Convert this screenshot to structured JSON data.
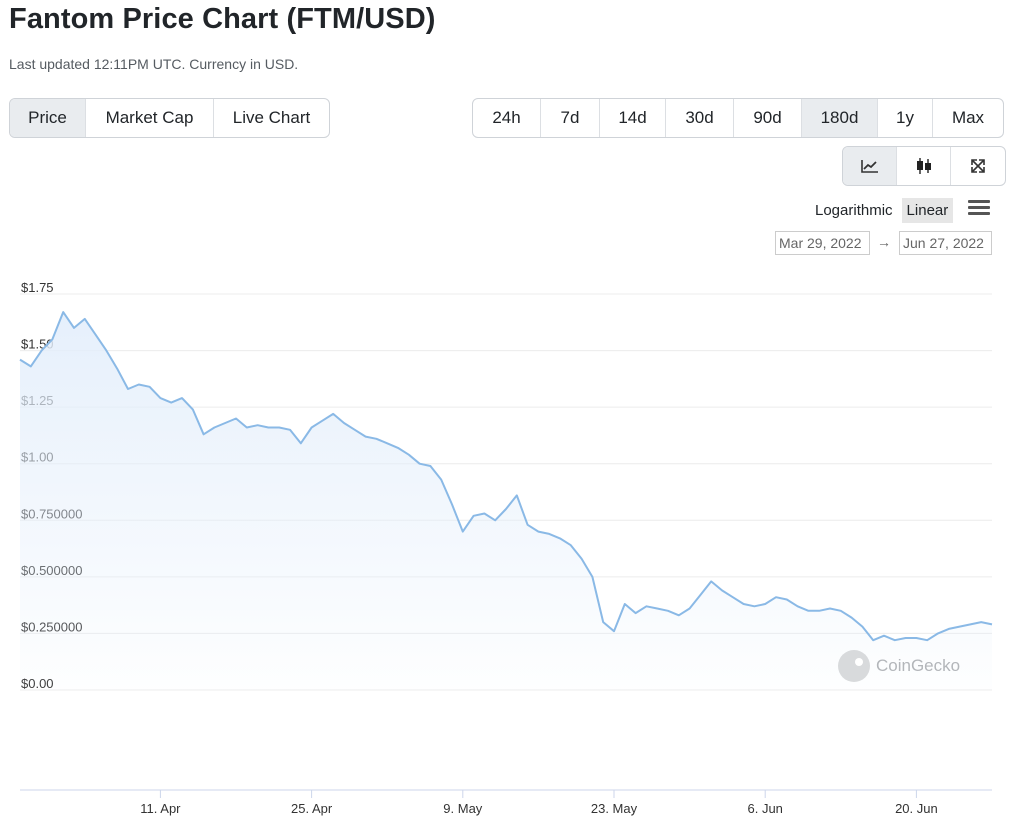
{
  "header": {
    "title": "Fantom Price Chart (FTM/USD)",
    "subtitle": "Last updated 12:11PM UTC. Currency in USD."
  },
  "view_tabs": [
    {
      "label": "Price",
      "active": true
    },
    {
      "label": "Market Cap",
      "active": false
    },
    {
      "label": "Live Chart",
      "active": false
    }
  ],
  "range_tabs": [
    {
      "label": "24h",
      "active": false
    },
    {
      "label": "7d",
      "active": false
    },
    {
      "label": "14d",
      "active": false
    },
    {
      "label": "30d",
      "active": false
    },
    {
      "label": "90d",
      "active": false
    },
    {
      "label": "180d",
      "active": true
    },
    {
      "label": "1y",
      "active": false
    },
    {
      "label": "Max",
      "active": false
    }
  ],
  "chart_type_buttons": [
    {
      "icon": "line-chart-icon",
      "active": true
    },
    {
      "icon": "candlestick-icon",
      "active": false
    },
    {
      "icon": "expand-icon",
      "active": false
    }
  ],
  "scale": {
    "log_label": "Logarithmic",
    "linear_label": "Linear",
    "active": "Linear"
  },
  "date_range": {
    "from": "Mar 29, 2022",
    "arrow": "→",
    "to": "Jun 27, 2022"
  },
  "watermark": "CoinGecko",
  "colors": {
    "line": "#8ab9e6",
    "fill_top": "#e3eefb",
    "grid": "#ececec",
    "active_button": "#e9ecef"
  },
  "chart_data": {
    "type": "area",
    "x_start": "2022-03-29",
    "x_end": "2022-06-27",
    "ylim": [
      0,
      1.75
    ],
    "yticks": [
      {
        "value": 1.75,
        "label": "$1.75"
      },
      {
        "value": 1.5,
        "label": "$1.50"
      },
      {
        "value": 1.25,
        "label": "$1.25"
      },
      {
        "value": 1.0,
        "label": "$1.00"
      },
      {
        "value": 0.75,
        "label": "$0.750000"
      },
      {
        "value": 0.5,
        "label": "$0.500000"
      },
      {
        "value": 0.25,
        "label": "$0.250000"
      },
      {
        "value": 0.0,
        "label": "$0.00"
      }
    ],
    "xticks": [
      {
        "date": "2022-04-11",
        "label": "11. Apr"
      },
      {
        "date": "2022-04-25",
        "label": "25. Apr"
      },
      {
        "date": "2022-05-09",
        "label": "9. May"
      },
      {
        "date": "2022-05-23",
        "label": "23. May"
      },
      {
        "date": "2022-06-06",
        "label": "6. Jun"
      },
      {
        "date": "2022-06-20",
        "label": "20. Jun"
      }
    ],
    "grid": true,
    "legend": "none",
    "series": [
      {
        "points": [
          [
            "2022-03-29",
            1.46
          ],
          [
            "2022-03-30",
            1.43
          ],
          [
            "2022-03-31",
            1.5
          ],
          [
            "2022-04-01",
            1.55
          ],
          [
            "2022-04-02",
            1.67
          ],
          [
            "2022-04-03",
            1.6
          ],
          [
            "2022-04-04",
            1.64
          ],
          [
            "2022-04-05",
            1.57
          ],
          [
            "2022-04-06",
            1.5
          ],
          [
            "2022-04-07",
            1.42
          ],
          [
            "2022-04-08",
            1.33
          ],
          [
            "2022-04-09",
            1.35
          ],
          [
            "2022-04-10",
            1.34
          ],
          [
            "2022-04-11",
            1.29
          ],
          [
            "2022-04-12",
            1.27
          ],
          [
            "2022-04-13",
            1.29
          ],
          [
            "2022-04-14",
            1.24
          ],
          [
            "2022-04-15",
            1.13
          ],
          [
            "2022-04-16",
            1.16
          ],
          [
            "2022-04-17",
            1.18
          ],
          [
            "2022-04-18",
            1.2
          ],
          [
            "2022-04-19",
            1.16
          ],
          [
            "2022-04-20",
            1.17
          ],
          [
            "2022-04-21",
            1.16
          ],
          [
            "2022-04-22",
            1.16
          ],
          [
            "2022-04-23",
            1.15
          ],
          [
            "2022-04-24",
            1.09
          ],
          [
            "2022-04-25",
            1.16
          ],
          [
            "2022-04-26",
            1.19
          ],
          [
            "2022-04-27",
            1.22
          ],
          [
            "2022-04-28",
            1.18
          ],
          [
            "2022-04-29",
            1.15
          ],
          [
            "2022-04-30",
            1.12
          ],
          [
            "2022-05-01",
            1.11
          ],
          [
            "2022-05-02",
            1.09
          ],
          [
            "2022-05-03",
            1.07
          ],
          [
            "2022-05-04",
            1.04
          ],
          [
            "2022-05-05",
            1.0
          ],
          [
            "2022-05-06",
            0.99
          ],
          [
            "2022-05-07",
            0.93
          ],
          [
            "2022-05-08",
            0.82
          ],
          [
            "2022-05-09",
            0.7
          ],
          [
            "2022-05-10",
            0.77
          ],
          [
            "2022-05-11",
            0.78
          ],
          [
            "2022-05-12",
            0.75
          ],
          [
            "2022-05-13",
            0.8
          ],
          [
            "2022-05-14",
            0.86
          ],
          [
            "2022-05-15",
            0.73
          ],
          [
            "2022-05-16",
            0.7
          ],
          [
            "2022-05-17",
            0.69
          ],
          [
            "2022-05-18",
            0.67
          ],
          [
            "2022-05-19",
            0.64
          ],
          [
            "2022-05-20",
            0.58
          ],
          [
            "2022-05-21",
            0.5
          ],
          [
            "2022-05-22",
            0.3
          ],
          [
            "2022-05-23",
            0.26
          ],
          [
            "2022-05-24",
            0.38
          ],
          [
            "2022-05-25",
            0.34
          ],
          [
            "2022-05-26",
            0.37
          ],
          [
            "2022-05-27",
            0.36
          ],
          [
            "2022-05-28",
            0.35
          ],
          [
            "2022-05-29",
            0.33
          ],
          [
            "2022-05-30",
            0.36
          ],
          [
            "2022-05-31",
            0.42
          ],
          [
            "2022-06-01",
            0.48
          ],
          [
            "2022-06-02",
            0.44
          ],
          [
            "2022-06-03",
            0.41
          ],
          [
            "2022-06-04",
            0.38
          ],
          [
            "2022-06-05",
            0.37
          ],
          [
            "2022-06-06",
            0.38
          ],
          [
            "2022-06-07",
            0.41
          ],
          [
            "2022-06-08",
            0.4
          ],
          [
            "2022-06-09",
            0.37
          ],
          [
            "2022-06-10",
            0.35
          ],
          [
            "2022-06-11",
            0.35
          ],
          [
            "2022-06-12",
            0.36
          ],
          [
            "2022-06-13",
            0.35
          ],
          [
            "2022-06-14",
            0.32
          ],
          [
            "2022-06-15",
            0.28
          ],
          [
            "2022-06-16",
            0.22
          ],
          [
            "2022-06-17",
            0.24
          ],
          [
            "2022-06-18",
            0.22
          ],
          [
            "2022-06-19",
            0.23
          ],
          [
            "2022-06-20",
            0.23
          ],
          [
            "2022-06-21",
            0.22
          ],
          [
            "2022-06-22",
            0.25
          ],
          [
            "2022-06-23",
            0.27
          ],
          [
            "2022-06-24",
            0.28
          ],
          [
            "2022-06-25",
            0.29
          ],
          [
            "2022-06-26",
            0.3
          ],
          [
            "2022-06-27",
            0.29
          ]
        ]
      }
    ]
  }
}
